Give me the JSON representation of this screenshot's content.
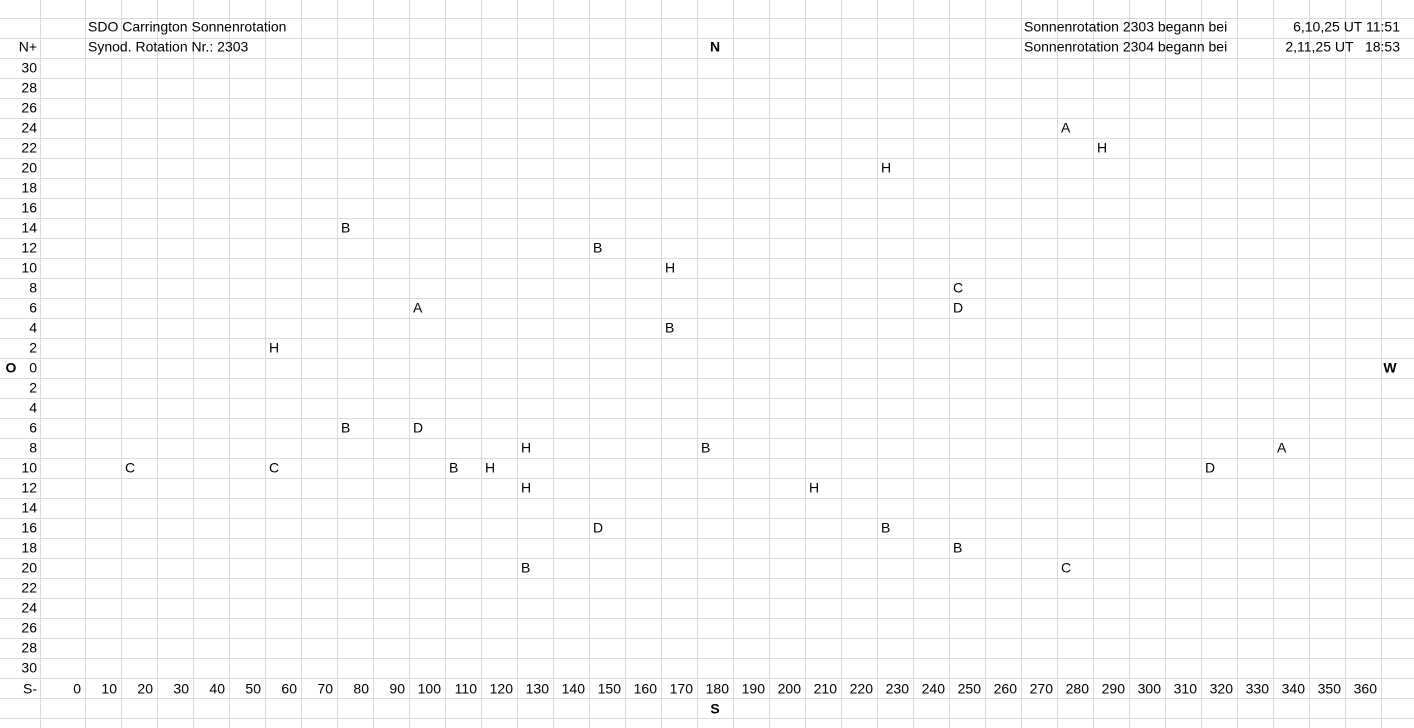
{
  "chart_data": {
    "type": "scatter",
    "title": "SDO Carrington Sonnenrotation",
    "subtitle": "Synod. Rotation Nr.: 2303",
    "info": [
      {
        "label": "Sonnenrotation 2303 begann bei",
        "value": "6,10,25 UT 11:51"
      },
      {
        "label": "Sonnenrotation 2304 begann bei",
        "value": "2,11,25 UT   18:53"
      }
    ],
    "y_top_label": "N+",
    "y_bottom_label": "S-",
    "directions": {
      "north": "N",
      "south": "S",
      "east": "O",
      "west": "W"
    },
    "direction_color": "#e00000",
    "x": [
      280,
      290,
      230,
      80,
      150,
      170,
      250,
      100,
      250,
      170,
      60,
      80,
      100,
      130,
      180,
      340,
      20,
      60,
      110,
      120,
      320,
      130,
      210,
      150,
      230,
      250,
      130,
      280
    ],
    "values": [
      24,
      22,
      20,
      14,
      12,
      10,
      8,
      6,
      6,
      4,
      2,
      -6,
      -6,
      -8,
      -8,
      -8,
      -10,
      -10,
      -10,
      -10,
      -10,
      -12,
      -12,
      -16,
      -16,
      -18,
      -20,
      -20
    ],
    "point_labels": [
      "A",
      "H",
      "H",
      "B",
      "B",
      "H",
      "C",
      "A",
      "D",
      "B",
      "H",
      "B",
      "D",
      "H",
      "B",
      "A",
      "C",
      "C",
      "B",
      "H",
      "D",
      "H",
      "H",
      "D",
      "B",
      "B",
      "B",
      "C"
    ],
    "xlim": [
      0,
      360
    ],
    "xticks": [
      0,
      10,
      20,
      30,
      40,
      50,
      60,
      70,
      80,
      90,
      100,
      110,
      120,
      130,
      140,
      150,
      160,
      170,
      180,
      190,
      200,
      210,
      220,
      230,
      240,
      250,
      260,
      270,
      280,
      290,
      300,
      310,
      320,
      330,
      340,
      350,
      360
    ],
    "ylim": [
      -30,
      30
    ],
    "yticks": [
      30,
      28,
      26,
      24,
      22,
      20,
      18,
      16,
      14,
      12,
      10,
      8,
      6,
      4,
      2,
      0,
      {
        "value": -2,
        "label": "2"
      },
      {
        "value": -4,
        "label": "4"
      },
      {
        "value": -6,
        "label": "6"
      },
      {
        "value": -8,
        "label": "8"
      },
      {
        "value": -10,
        "label": "10"
      },
      {
        "value": -12,
        "label": "12"
      },
      {
        "value": -14,
        "label": "14"
      },
      {
        "value": -16,
        "label": "16"
      },
      {
        "value": -18,
        "label": "18"
      },
      {
        "value": -20,
        "label": "20"
      },
      {
        "value": -22,
        "label": "22"
      },
      {
        "value": -24,
        "label": "24"
      },
      {
        "value": -26,
        "label": "26"
      },
      {
        "value": -28,
        "label": "28"
      },
      {
        "value": -30,
        "label": "30"
      }
    ]
  }
}
